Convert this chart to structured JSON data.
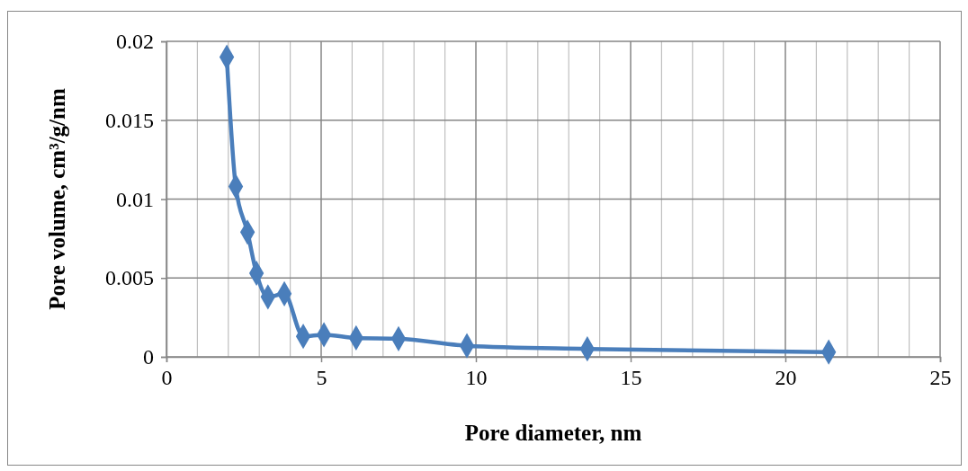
{
  "chart_data": {
    "type": "line",
    "xlabel": "Pore diameter, nm",
    "ylabel": "Pore volume, cm³/g/nm",
    "x": [
      1.95,
      2.24,
      2.62,
      2.91,
      3.28,
      3.81,
      4.42,
      5.09,
      6.13,
      7.5,
      9.71,
      13.6,
      21.4
    ],
    "series": [
      {
        "color": "#4a7ebb",
        "values": [
          0.019,
          0.0108,
          0.0079,
          0.0053,
          0.0038,
          0.004,
          0.0013,
          0.0014,
          0.0012,
          0.00115,
          0.0007,
          0.0005,
          0.0003
        ]
      }
    ],
    "xlim": [
      0,
      25
    ],
    "xticks": [
      0,
      {
        "value": 1,
        "label": null
      },
      {
        "value": 2,
        "label": null
      },
      {
        "value": 3,
        "label": null
      },
      {
        "value": 4,
        "label": null
      },
      5,
      {
        "value": 6,
        "label": null
      },
      {
        "value": 7,
        "label": null
      },
      {
        "value": 8,
        "label": null
      },
      {
        "value": 9,
        "label": null
      },
      10,
      {
        "value": 11,
        "label": null
      },
      {
        "value": 12,
        "label": null
      },
      {
        "value": 13,
        "label": null
      },
      {
        "value": 14,
        "label": null
      },
      15,
      {
        "value": 16,
        "label": null
      },
      {
        "value": 17,
        "label": null
      },
      {
        "value": 18,
        "label": null
      },
      {
        "value": 19,
        "label": null
      },
      20,
      {
        "value": 21,
        "label": null
      },
      {
        "value": 22,
        "label": null
      },
      {
        "value": 23,
        "label": null
      },
      {
        "value": 24,
        "label": null
      },
      25
    ],
    "ylim": [
      0,
      0.02
    ],
    "yticks": [
      0,
      0.005,
      0.01,
      0.015,
      0.02
    ],
    "grid": true,
    "marker": "diamond",
    "line_style": "solid"
  }
}
